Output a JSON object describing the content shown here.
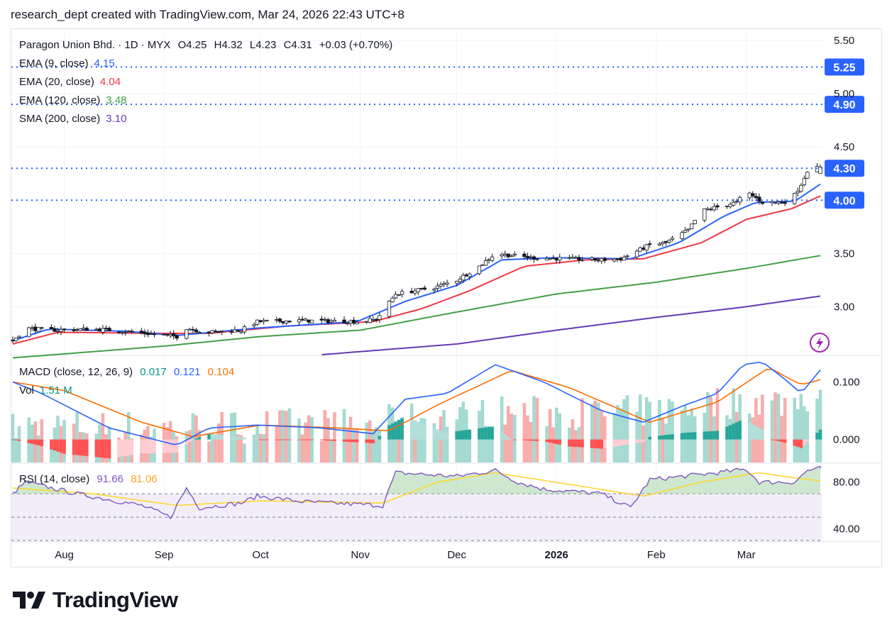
{
  "header": {
    "text": "research_dept created with TradingView.com, Mar 24, 2026 22:43 UTC+8"
  },
  "legend": {
    "symbol_line": "Paragon Union Bhd. · 1D · MYX",
    "ohlc": {
      "o": "O4.25",
      "h": "H4.32",
      "l": "L4.23",
      "c": "C4.31",
      "chg": "+0.03 (+0.70%)"
    },
    "ema9": {
      "label": "EMA (9, close)",
      "value": "4.15",
      "color": "#2962ff"
    },
    "ema20": {
      "label": "EMA (20, close)",
      "value": "4.04",
      "color": "#f23645"
    },
    "ema120": {
      "label": "EMA (120, close)",
      "value": "3.48",
      "color": "#43a047"
    },
    "sma200": {
      "label": "SMA (200, close)",
      "value": "3.10",
      "color": "#673ab7"
    },
    "macd": {
      "label": "MACD (close, 12, 26, 9)",
      "hist": "0.017",
      "macd": "0.121",
      "signal": "0.104",
      "hist_color": "#089981",
      "macd_color": "#2962ff",
      "signal_color": "#ff6d00"
    },
    "vol": {
      "label": "Vol",
      "value": "1.51 M",
      "color": "#089981"
    },
    "rsi": {
      "label": "RSI (14, close)",
      "value": "91.66",
      "ma": "81.06",
      "color": "#7e57c2",
      "ma_color": "#fdd835"
    }
  },
  "price_axis": {
    "ticks": [
      "5.50",
      "5.00",
      "4.50",
      "3.50",
      "3.00"
    ],
    "levels": [
      {
        "value": 5.25,
        "label": "5.25"
      },
      {
        "value": 4.9,
        "label": "4.90"
      },
      {
        "value": 4.3,
        "label": "4.30"
      },
      {
        "value": 4.0,
        "label": "4.00"
      }
    ]
  },
  "macd_axis": {
    "ticks": [
      "0.100",
      "0.000"
    ]
  },
  "rsi_axis": {
    "ticks": [
      "80.00",
      "40.00"
    ]
  },
  "time_axis": {
    "labels": [
      "Aug",
      "Sep",
      "Oct",
      "Nov",
      "Dec",
      "2026",
      "Feb",
      "Mar"
    ]
  },
  "chart_data": {
    "type": "candlestick",
    "symbol": "Paragon Union Bhd.",
    "interval": "1D",
    "exchange": "MYX",
    "last": {
      "open": 4.25,
      "high": 4.32,
      "low": 4.23,
      "close": 4.31,
      "change": 0.03,
      "change_pct": 0.7
    },
    "ylim": [
      2.55,
      5.6
    ],
    "close_anchors": [
      {
        "date": "2025-07-16",
        "close": 2.68
      },
      {
        "date": "2025-07-20",
        "close": 2.8
      },
      {
        "date": "2025-07-27",
        "close": 2.78
      },
      {
        "date": "2025-08-10",
        "close": 2.79
      },
      {
        "date": "2025-08-20",
        "close": 2.77
      },
      {
        "date": "2025-08-29",
        "close": 2.74
      },
      {
        "date": "2025-09-05",
        "close": 2.72
      },
      {
        "date": "2025-09-08",
        "close": 2.8
      },
      {
        "date": "2025-09-14",
        "close": 2.76
      },
      {
        "date": "2025-09-25",
        "close": 2.78
      },
      {
        "date": "2025-09-30",
        "close": 2.86
      },
      {
        "date": "2025-10-15",
        "close": 2.87
      },
      {
        "date": "2025-10-31",
        "close": 2.86
      },
      {
        "date": "2025-11-06",
        "close": 2.88
      },
      {
        "date": "2025-11-12",
        "close": 3.12
      },
      {
        "date": "2025-11-24",
        "close": 3.18
      },
      {
        "date": "2025-12-01",
        "close": 3.25
      },
      {
        "date": "2025-12-08",
        "close": 3.38
      },
      {
        "date": "2025-12-13",
        "close": 3.5
      },
      {
        "date": "2025-12-24",
        "close": 3.46
      },
      {
        "date": "2026-01-15",
        "close": 3.44
      },
      {
        "date": "2026-01-21",
        "close": 3.45
      },
      {
        "date": "2026-01-30",
        "close": 3.58
      },
      {
        "date": "2026-02-04",
        "close": 3.6
      },
      {
        "date": "2026-02-11",
        "close": 3.72
      },
      {
        "date": "2026-02-15",
        "close": 3.9
      },
      {
        "date": "2026-02-26",
        "close": 3.98
      },
      {
        "date": "2026-03-01",
        "close": 4.08
      },
      {
        "date": "2026-03-06",
        "close": 3.98
      },
      {
        "date": "2026-03-12",
        "close": 3.98
      },
      {
        "date": "2026-03-15",
        "close": 4.0
      },
      {
        "date": "2026-03-18",
        "close": 4.15
      },
      {
        "date": "2026-03-20",
        "close": 4.28
      },
      {
        "date": "2026-03-24",
        "close": 4.31
      }
    ],
    "ema9_anchors": [
      {
        "date": "2025-07-16",
        "value": 2.68
      },
      {
        "date": "2025-07-27",
        "value": 2.79
      },
      {
        "date": "2025-08-20",
        "value": 2.77
      },
      {
        "date": "2025-09-05",
        "value": 2.73
      },
      {
        "date": "2025-09-30",
        "value": 2.8
      },
      {
        "date": "2025-10-31",
        "value": 2.86
      },
      {
        "date": "2025-11-15",
        "value": 3.05
      },
      {
        "date": "2025-12-01",
        "value": 3.2
      },
      {
        "date": "2025-12-15",
        "value": 3.44
      },
      {
        "date": "2025-12-31",
        "value": 3.46
      },
      {
        "date": "2026-01-24",
        "value": 3.45
      },
      {
        "date": "2026-02-08",
        "value": 3.6
      },
      {
        "date": "2026-02-22",
        "value": 3.85
      },
      {
        "date": "2026-03-04",
        "value": 3.98
      },
      {
        "date": "2026-03-16",
        "value": 3.99
      },
      {
        "date": "2026-03-24",
        "value": 4.15
      }
    ],
    "ema20_anchors": [
      {
        "date": "2025-07-16",
        "value": 2.65
      },
      {
        "date": "2025-07-30",
        "value": 2.76
      },
      {
        "date": "2025-08-31",
        "value": 2.75
      },
      {
        "date": "2025-09-15",
        "value": 2.75
      },
      {
        "date": "2025-10-10",
        "value": 2.82
      },
      {
        "date": "2025-11-05",
        "value": 2.86
      },
      {
        "date": "2025-11-20",
        "value": 2.98
      },
      {
        "date": "2025-12-05",
        "value": 3.15
      },
      {
        "date": "2025-12-22",
        "value": 3.38
      },
      {
        "date": "2026-01-10",
        "value": 3.44
      },
      {
        "date": "2026-01-28",
        "value": 3.45
      },
      {
        "date": "2026-02-15",
        "value": 3.6
      },
      {
        "date": "2026-03-01",
        "value": 3.82
      },
      {
        "date": "2026-03-15",
        "value": 3.92
      },
      {
        "date": "2026-03-24",
        "value": 4.04
      }
    ],
    "ema120_anchors": [
      {
        "date": "2025-07-16",
        "value": 2.52
      },
      {
        "date": "2025-09-01",
        "value": 2.63
      },
      {
        "date": "2025-10-01",
        "value": 2.72
      },
      {
        "date": "2025-11-01",
        "value": 2.78
      },
      {
        "date": "2025-12-01",
        "value": 2.95
      },
      {
        "date": "2026-01-01",
        "value": 3.12
      },
      {
        "date": "2026-02-01",
        "value": 3.23
      },
      {
        "date": "2026-03-01",
        "value": 3.36
      },
      {
        "date": "2026-03-24",
        "value": 3.48
      }
    ],
    "sma200_anchors": [
      {
        "date": "2025-10-20",
        "value": 2.55
      },
      {
        "date": "2025-12-01",
        "value": 2.65
      },
      {
        "date": "2026-01-01",
        "value": 2.78
      },
      {
        "date": "2026-02-01",
        "value": 2.9
      },
      {
        "date": "2026-03-01",
        "value": 3.0
      },
      {
        "date": "2026-03-24",
        "value": 3.1
      }
    ],
    "macd_line_anchors": [
      {
        "date": "2025-07-16",
        "value": 0.1
      },
      {
        "date": "2025-07-25",
        "value": 0.08
      },
      {
        "date": "2025-08-15",
        "value": 0.02
      },
      {
        "date": "2025-09-05",
        "value": -0.01
      },
      {
        "date": "2025-09-15",
        "value": 0.02
      },
      {
        "date": "2025-09-30",
        "value": 0.025
      },
      {
        "date": "2025-10-20",
        "value": 0.02
      },
      {
        "date": "2025-11-05",
        "value": 0.01
      },
      {
        "date": "2025-11-15",
        "value": 0.07
      },
      {
        "date": "2025-11-28",
        "value": 0.08
      },
      {
        "date": "2025-12-13",
        "value": 0.13
      },
      {
        "date": "2025-12-28",
        "value": 0.1
      },
      {
        "date": "2026-01-15",
        "value": 0.05
      },
      {
        "date": "2026-01-28",
        "value": 0.03
      },
      {
        "date": "2026-02-10",
        "value": 0.06
      },
      {
        "date": "2026-02-20",
        "value": 0.08
      },
      {
        "date": "2026-02-28",
        "value": 0.13
      },
      {
        "date": "2026-03-06",
        "value": 0.135
      },
      {
        "date": "2026-03-14",
        "value": 0.1
      },
      {
        "date": "2026-03-18",
        "value": 0.08
      },
      {
        "date": "2026-03-24",
        "value": 0.121
      }
    ],
    "signal_line_anchors": [
      {
        "date": "2025-07-16",
        "value": 0.1
      },
      {
        "date": "2025-08-01",
        "value": 0.085
      },
      {
        "date": "2025-08-25",
        "value": 0.03
      },
      {
        "date": "2025-09-10",
        "value": 0.005
      },
      {
        "date": "2025-10-01",
        "value": 0.025
      },
      {
        "date": "2025-10-25",
        "value": 0.02
      },
      {
        "date": "2025-11-10",
        "value": 0.015
      },
      {
        "date": "2025-11-25",
        "value": 0.06
      },
      {
        "date": "2025-12-18",
        "value": 0.12
      },
      {
        "date": "2026-01-05",
        "value": 0.09
      },
      {
        "date": "2026-01-30",
        "value": 0.03
      },
      {
        "date": "2026-02-20",
        "value": 0.065
      },
      {
        "date": "2026-03-08",
        "value": 0.125
      },
      {
        "date": "2026-03-18",
        "value": 0.095
      },
      {
        "date": "2026-03-24",
        "value": 0.104
      }
    ],
    "macd_ylim": [
      -0.04,
      0.145
    ],
    "rsi_anchors": [
      {
        "date": "2025-07-16",
        "value": 70
      },
      {
        "date": "2025-07-20",
        "value": 80
      },
      {
        "date": "2025-08-05",
        "value": 70
      },
      {
        "date": "2025-08-25",
        "value": 60
      },
      {
        "date": "2025-09-03",
        "value": 50
      },
      {
        "date": "2025-09-08",
        "value": 75
      },
      {
        "date": "2025-09-12",
        "value": 58
      },
      {
        "date": "2025-09-25",
        "value": 62
      },
      {
        "date": "2025-09-30",
        "value": 68
      },
      {
        "date": "2025-10-15",
        "value": 63
      },
      {
        "date": "2025-11-08",
        "value": 60
      },
      {
        "date": "2025-11-12",
        "value": 88
      },
      {
        "date": "2025-12-01",
        "value": 85
      },
      {
        "date": "2025-12-13",
        "value": 90
      },
      {
        "date": "2025-12-20",
        "value": 80
      },
      {
        "date": "2025-12-28",
        "value": 74
      },
      {
        "date": "2026-01-15",
        "value": 70
      },
      {
        "date": "2026-01-24",
        "value": 58
      },
      {
        "date": "2026-01-30",
        "value": 82
      },
      {
        "date": "2026-02-20",
        "value": 88
      },
      {
        "date": "2026-03-01",
        "value": 91
      },
      {
        "date": "2026-03-05",
        "value": 80
      },
      {
        "date": "2026-03-16",
        "value": 80
      },
      {
        "date": "2026-03-20",
        "value": 90
      },
      {
        "date": "2026-03-24",
        "value": 91.66
      }
    ],
    "rsi_ma_anchors": [
      {
        "date": "2025-07-16",
        "value": 75
      },
      {
        "date": "2025-08-10",
        "value": 70
      },
      {
        "date": "2025-09-05",
        "value": 60
      },
      {
        "date": "2025-10-01",
        "value": 64
      },
      {
        "date": "2025-11-08",
        "value": 62
      },
      {
        "date": "2025-11-25",
        "value": 80
      },
      {
        "date": "2025-12-13",
        "value": 88
      },
      {
        "date": "2026-01-05",
        "value": 78
      },
      {
        "date": "2026-01-28",
        "value": 68
      },
      {
        "date": "2026-02-15",
        "value": 80
      },
      {
        "date": "2026-03-05",
        "value": 88
      },
      {
        "date": "2026-03-15",
        "value": 84
      },
      {
        "date": "2026-03-24",
        "value": 81.06
      }
    ],
    "rsi_ylim": [
      30,
      95
    ],
    "rsi_bands": [
      70,
      50,
      30
    ]
  }
}
